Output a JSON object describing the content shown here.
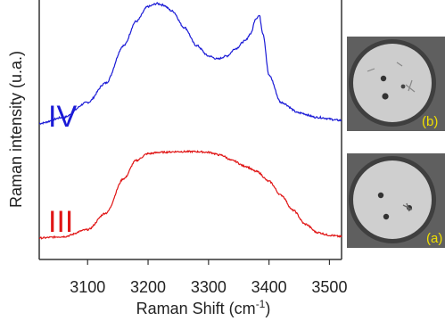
{
  "chart_data": {
    "type": "line",
    "xlabel": "Raman Shift (cm",
    "xlabel_sup": "-1",
    "xlabel_suffix": ")",
    "ylabel": "Raman intensity (u.a.)",
    "xlim": [
      3020,
      3520
    ],
    "x_ticks": [
      3100,
      3200,
      3300,
      3400,
      3500
    ],
    "series": [
      {
        "name": "IV",
        "color": "#1a1ad6",
        "x": [
          3020,
          3060,
          3100,
          3130,
          3160,
          3180,
          3200,
          3215,
          3225,
          3240,
          3260,
          3280,
          3300,
          3315,
          3330,
          3345,
          3360,
          3370,
          3378,
          3384,
          3390,
          3400,
          3420,
          3450,
          3480,
          3520
        ],
        "y": [
          0.2,
          0.24,
          0.34,
          0.47,
          0.72,
          0.88,
          0.98,
          1.0,
          0.99,
          0.95,
          0.84,
          0.72,
          0.65,
          0.63,
          0.65,
          0.7,
          0.75,
          0.8,
          0.9,
          0.92,
          0.8,
          0.52,
          0.34,
          0.27,
          0.24,
          0.22
        ]
      },
      {
        "name": "III",
        "color": "#e01515",
        "x": [
          3020,
          3060,
          3100,
          3130,
          3160,
          3180,
          3200,
          3220,
          3250,
          3280,
          3300,
          3320,
          3340,
          3360,
          3380,
          3400,
          3420,
          3440,
          3460,
          3480,
          3500,
          3520
        ],
        "y": [
          0.02,
          0.03,
          0.08,
          0.2,
          0.45,
          0.58,
          0.63,
          0.64,
          0.645,
          0.645,
          0.64,
          0.62,
          0.58,
          0.54,
          0.5,
          0.43,
          0.33,
          0.22,
          0.12,
          0.06,
          0.04,
          0.03
        ]
      }
    ],
    "photos": [
      {
        "label": "(b)"
      },
      {
        "label": "(a)"
      }
    ]
  }
}
